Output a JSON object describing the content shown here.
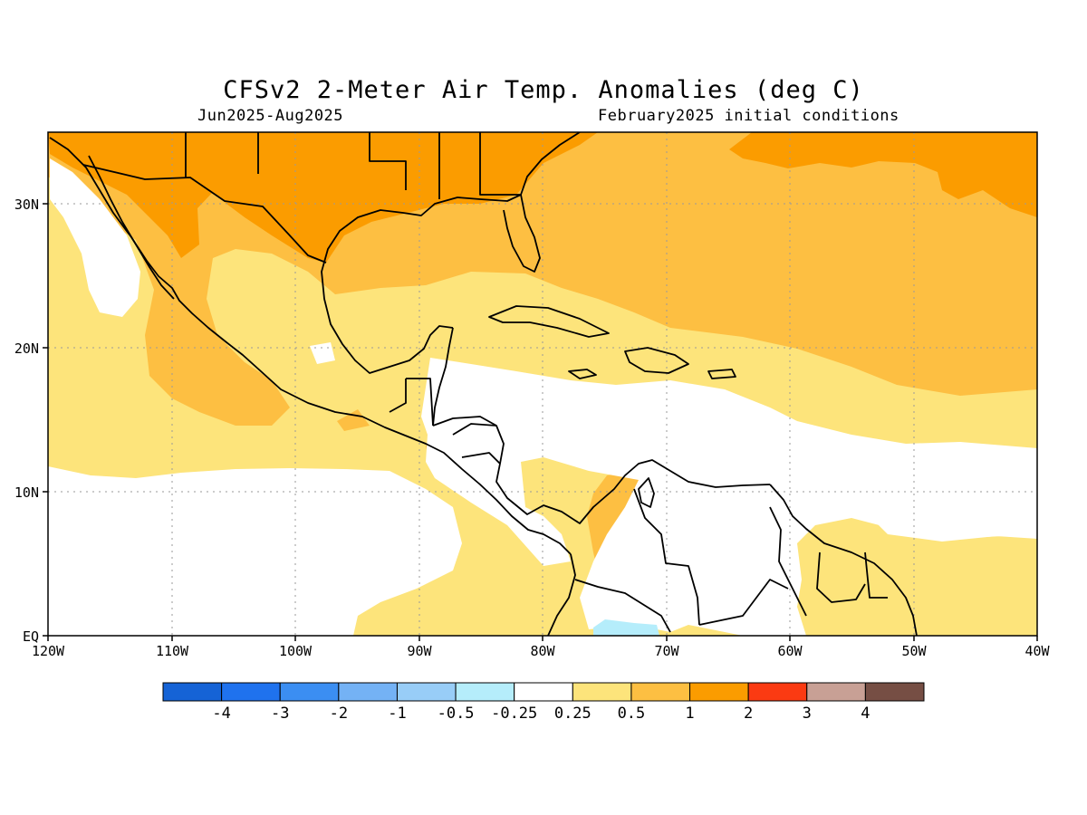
{
  "title": "CFSv2 2-Meter Air Temp. Anomalies (deg C)",
  "subtitle_left": "Jun2025-Aug2025",
  "subtitle_right": "February2025 initial conditions",
  "lat_labels": [
    "30N",
    "20N",
    "10N",
    "EQ"
  ],
  "lon_labels": [
    "120W",
    "110W",
    "100W",
    "90W",
    "80W",
    "70W",
    "60W",
    "50W",
    "40W"
  ],
  "colorbar": {
    "bins": [
      "#1563d6",
      "#1f72ee",
      "#3b8ef2",
      "#74b2f5",
      "#98cdf7",
      "#b5edfb",
      "#ffffff",
      "#fde47b",
      "#fdbf42",
      "#fb9c00",
      "#fb3a12",
      "#c8a095",
      "#764e44"
    ],
    "labels": [
      "-4",
      "-3",
      "-2",
      "-1",
      "-0.5",
      "-0.25",
      "0.25",
      "0.5",
      "1",
      "2",
      "3",
      "4"
    ]
  },
  "colors": {
    "white": "#ffffff",
    "light_yellow": "#fde47b",
    "light_orange": "#fdbf42",
    "orange": "#fb9c00",
    "light_blue": "#b5edfb",
    "outline": "#000000",
    "grid": "#9a9a9a"
  }
}
